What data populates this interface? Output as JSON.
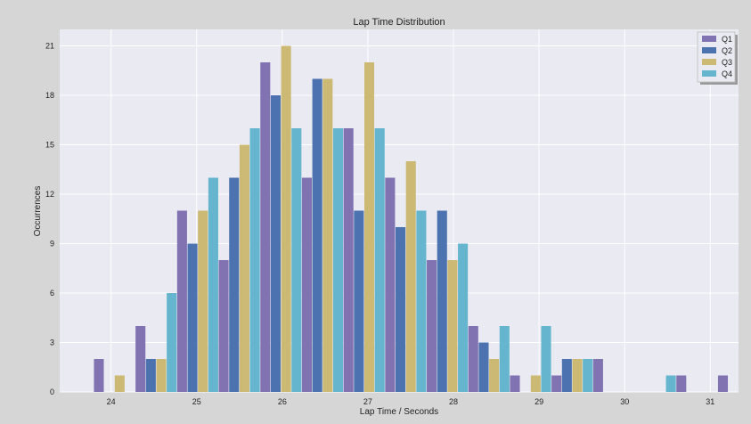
{
  "chart_data": {
    "type": "bar",
    "title": "Lap Time Distribution",
    "xlabel": "Lap Time / Seconds",
    "ylabel": "Occurrences",
    "xlim": [
      23.4,
      31.33
    ],
    "ylim": [
      0,
      22
    ],
    "xticks": [
      24,
      25,
      26,
      27,
      28,
      29,
      30,
      31
    ],
    "yticks": [
      0,
      3,
      6,
      9,
      12,
      15,
      18,
      21
    ],
    "bin_start": 23.8,
    "bin_width": 0.486,
    "grid": true,
    "legend_position": "top-right",
    "series": [
      {
        "name": "Q1",
        "color": "#8172b2",
        "values": [
          2,
          4,
          11,
          8,
          20,
          13,
          16,
          13,
          8,
          4,
          1,
          1,
          2,
          0,
          1,
          1
        ]
      },
      {
        "name": "Q2",
        "color": "#4c72b0",
        "values": [
          0,
          2,
          9,
          13,
          18,
          19,
          11,
          10,
          11,
          3,
          0,
          2,
          0,
          0,
          0,
          0
        ]
      },
      {
        "name": "Q3",
        "color": "#ccb974",
        "values": [
          1,
          2,
          11,
          15,
          21,
          19,
          20,
          14,
          8,
          2,
          1,
          2,
          0,
          0,
          0,
          0
        ]
      },
      {
        "name": "Q4",
        "color": "#64b5cd",
        "values": [
          0,
          6,
          13,
          16,
          16,
          16,
          16,
          11,
          9,
          4,
          4,
          2,
          0,
          1,
          0,
          0
        ]
      }
    ]
  }
}
